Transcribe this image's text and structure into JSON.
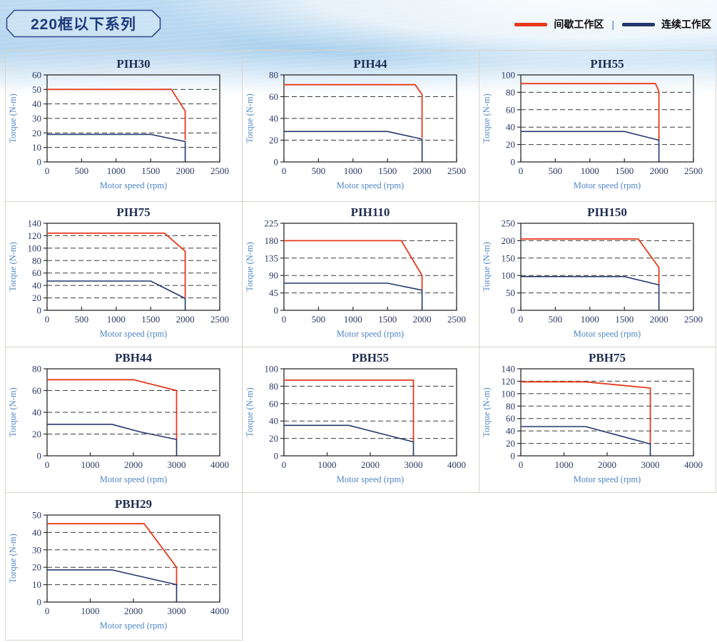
{
  "header": {
    "series_title": "220框以下系列",
    "legend_separator": "|",
    "legend": [
      {
        "zone": "intermittent",
        "label": "间歇工作区"
      },
      {
        "zone": "continuous",
        "label": "连续工作区"
      }
    ]
  },
  "colors": {
    "intermittent": "#e8391c",
    "continuous": "#24386d",
    "axis_label": "#4f86c6",
    "tick_label": "#2b3a66",
    "grid_line": "#3a3a3a",
    "plot_border": "#2b2b2b",
    "cell_border": "#d8d4cd",
    "badge_border": "#2e4a8f",
    "badge_text": "#1e3a7c"
  },
  "chart_data": [
    {
      "type": "line",
      "title": "PIH30",
      "xlabel": "Motor speed (rpm)",
      "ylabel": "Torque (N-m)",
      "xlim": [
        0,
        2500
      ],
      "xticks": [
        0,
        500,
        1000,
        1500,
        2000,
        2500
      ],
      "ylim": [
        0,
        60
      ],
      "yticks": [
        0,
        10,
        20,
        30,
        40,
        50,
        60
      ],
      "series": [
        {
          "name": "间歇工作区",
          "zone": "intermittent",
          "points": [
            [
              0,
              50
            ],
            [
              1800,
              50
            ],
            [
              2000,
              35
            ],
            [
              2000,
              15
            ]
          ]
        },
        {
          "name": "连续工作区",
          "zone": "continuous",
          "points": [
            [
              0,
              19
            ],
            [
              1500,
              19
            ],
            [
              2000,
              14
            ],
            [
              2000,
              0
            ]
          ]
        }
      ]
    },
    {
      "type": "line",
      "title": "PIH44",
      "xlabel": "Motor speed (rpm)",
      "ylabel": "Torque (N-m)",
      "xlim": [
        0,
        2500
      ],
      "xticks": [
        0,
        500,
        1000,
        1500,
        2000,
        2500
      ],
      "ylim": [
        0,
        80
      ],
      "yticks": [
        0,
        20,
        40,
        60,
        80
      ],
      "series": [
        {
          "name": "间歇工作区",
          "zone": "intermittent",
          "points": [
            [
              0,
              71
            ],
            [
              1900,
              71
            ],
            [
              2000,
              62
            ],
            [
              2000,
              22
            ]
          ]
        },
        {
          "name": "连续工作区",
          "zone": "continuous",
          "points": [
            [
              0,
              28
            ],
            [
              1500,
              28
            ],
            [
              2000,
              21
            ],
            [
              2000,
              0
            ]
          ]
        }
      ]
    },
    {
      "type": "line",
      "title": "PIH55",
      "xlabel": "Motor speed (rpm)",
      "ylabel": "Torque (N-m)",
      "xlim": [
        0,
        2500
      ],
      "xticks": [
        0,
        500,
        1000,
        1500,
        2000,
        2500
      ],
      "ylim": [
        0,
        100
      ],
      "yticks": [
        0,
        20,
        40,
        60,
        80,
        100
      ],
      "series": [
        {
          "name": "间歇工作区",
          "zone": "intermittent",
          "points": [
            [
              0,
              90
            ],
            [
              1950,
              90
            ],
            [
              2000,
              81
            ],
            [
              2000,
              25
            ]
          ]
        },
        {
          "name": "连续工作区",
          "zone": "continuous",
          "points": [
            [
              0,
              35
            ],
            [
              1500,
              35
            ],
            [
              2000,
              25
            ],
            [
              2000,
              0
            ]
          ]
        }
      ]
    },
    {
      "type": "line",
      "title": "PIH75",
      "xlabel": "Motor speed (rpm)",
      "ylabel": "Torque (N-m)",
      "xlim": [
        0,
        2500
      ],
      "xticks": [
        0,
        500,
        1000,
        1500,
        2000,
        2500
      ],
      "ylim": [
        0,
        140
      ],
      "yticks": [
        0,
        20,
        40,
        60,
        80,
        100,
        120,
        140
      ],
      "series": [
        {
          "name": "间歇工作区",
          "zone": "intermittent",
          "points": [
            [
              0,
              124
            ],
            [
              1700,
              124
            ],
            [
              2000,
              95
            ],
            [
              2000,
              20
            ]
          ]
        },
        {
          "name": "连续工作区",
          "zone": "continuous",
          "points": [
            [
              0,
              47
            ],
            [
              1500,
              47
            ],
            [
              2000,
              19
            ],
            [
              2000,
              0
            ]
          ]
        }
      ]
    },
    {
      "type": "line",
      "title": "PIH110",
      "xlabel": "Motor speed (rpm)",
      "ylabel": "Torque (N-m)",
      "xlim": [
        0,
        2500
      ],
      "xticks": [
        0,
        500,
        1000,
        1500,
        2000,
        2500
      ],
      "ylim": [
        0,
        225
      ],
      "yticks": [
        0,
        45,
        90,
        135,
        180,
        225
      ],
      "series": [
        {
          "name": "间歇工作区",
          "zone": "intermittent",
          "points": [
            [
              0,
              180
            ],
            [
              1700,
              180
            ],
            [
              2000,
              90
            ],
            [
              2000,
              52
            ]
          ]
        },
        {
          "name": "连续工作区",
          "zone": "continuous",
          "points": [
            [
              0,
              70
            ],
            [
              1500,
              70
            ],
            [
              2000,
              52
            ],
            [
              2000,
              0
            ]
          ]
        }
      ]
    },
    {
      "type": "line",
      "title": "PIH150",
      "xlabel": "Motor speed (rpm)",
      "ylabel": "Torque (N-m)",
      "xlim": [
        0,
        2500
      ],
      "xticks": [
        0,
        500,
        1000,
        1500,
        2000,
        2500
      ],
      "ylim": [
        0,
        250
      ],
      "yticks": [
        0,
        50,
        100,
        150,
        200,
        250
      ],
      "series": [
        {
          "name": "间歇工作区",
          "zone": "intermittent",
          "points": [
            [
              0,
              205
            ],
            [
              1700,
              205
            ],
            [
              2000,
              123
            ],
            [
              2000,
              73
            ]
          ]
        },
        {
          "name": "连续工作区",
          "zone": "continuous",
          "points": [
            [
              0,
              97
            ],
            [
              1500,
              97
            ],
            [
              2000,
              73
            ],
            [
              2000,
              0
            ]
          ]
        }
      ]
    },
    {
      "type": "line",
      "title": "PBH44",
      "xlabel": "Motor speed (rpm)",
      "ylabel": "Torque (N-m)",
      "xlim": [
        0,
        4000
      ],
      "xticks": [
        0,
        1000,
        2000,
        3000,
        4000
      ],
      "ylim": [
        0,
        80
      ],
      "yticks": [
        0,
        20,
        40,
        60,
        80
      ],
      "series": [
        {
          "name": "间歇工作区",
          "zone": "intermittent",
          "points": [
            [
              0,
              70
            ],
            [
              2000,
              70
            ],
            [
              3000,
              60
            ],
            [
              3000,
              15
            ]
          ]
        },
        {
          "name": "连续工作区",
          "zone": "continuous",
          "points": [
            [
              0,
              29
            ],
            [
              1500,
              29
            ],
            [
              2150,
              22
            ],
            [
              3000,
              15
            ],
            [
              3000,
              0
            ]
          ]
        }
      ]
    },
    {
      "type": "line",
      "title": "PBH55",
      "xlabel": "Motor speed (rpm)",
      "ylabel": "Torque (N-m)",
      "xlim": [
        0,
        4000
      ],
      "xticks": [
        0,
        1000,
        2000,
        3000,
        4000
      ],
      "ylim": [
        0,
        100
      ],
      "yticks": [
        0,
        20,
        40,
        60,
        80,
        100
      ],
      "series": [
        {
          "name": "间歇工作区",
          "zone": "intermittent",
          "points": [
            [
              0,
              87
            ],
            [
              3000,
              87
            ],
            [
              3000,
              16
            ]
          ]
        },
        {
          "name": "连续工作区",
          "zone": "continuous",
          "points": [
            [
              0,
              35
            ],
            [
              1500,
              35
            ],
            [
              3000,
              16
            ],
            [
              3000,
              0
            ]
          ]
        }
      ]
    },
    {
      "type": "line",
      "title": "PBH75",
      "xlabel": "Motor speed (rpm)",
      "ylabel": "Torque (N-m)",
      "xlim": [
        0,
        4000
      ],
      "xticks": [
        0,
        1000,
        2000,
        3000,
        4000
      ],
      "ylim": [
        0,
        140
      ],
      "yticks": [
        0,
        20,
        40,
        60,
        80,
        100,
        120,
        140
      ],
      "series": [
        {
          "name": "间歇工作区",
          "zone": "intermittent",
          "points": [
            [
              0,
              119
            ],
            [
              1500,
              119
            ],
            [
              3000,
              109
            ],
            [
              3000,
              19
            ]
          ]
        },
        {
          "name": "连续工作区",
          "zone": "continuous",
          "points": [
            [
              0,
              47
            ],
            [
              1500,
              47
            ],
            [
              3000,
              19
            ],
            [
              3000,
              0
            ]
          ]
        }
      ]
    },
    {
      "type": "line",
      "title": "PBH29",
      "xlabel": "Motor speed (rpm)",
      "ylabel": "Torque (N-m)",
      "xlim": [
        0,
        4000
      ],
      "xticks": [
        0,
        1000,
        2000,
        3000,
        4000
      ],
      "ylim": [
        0,
        50
      ],
      "yticks": [
        0,
        10,
        20,
        30,
        40,
        50
      ],
      "series": [
        {
          "name": "间歇工作区",
          "zone": "intermittent",
          "points": [
            [
              0,
              45
            ],
            [
              2250,
              45
            ],
            [
              3000,
              20
            ],
            [
              3000,
              10
            ]
          ]
        },
        {
          "name": "连续工作区",
          "zone": "continuous",
          "points": [
            [
              0,
              18.5
            ],
            [
              1500,
              18.5
            ],
            [
              3000,
              10
            ],
            [
              3000,
              0
            ]
          ]
        }
      ]
    }
  ]
}
